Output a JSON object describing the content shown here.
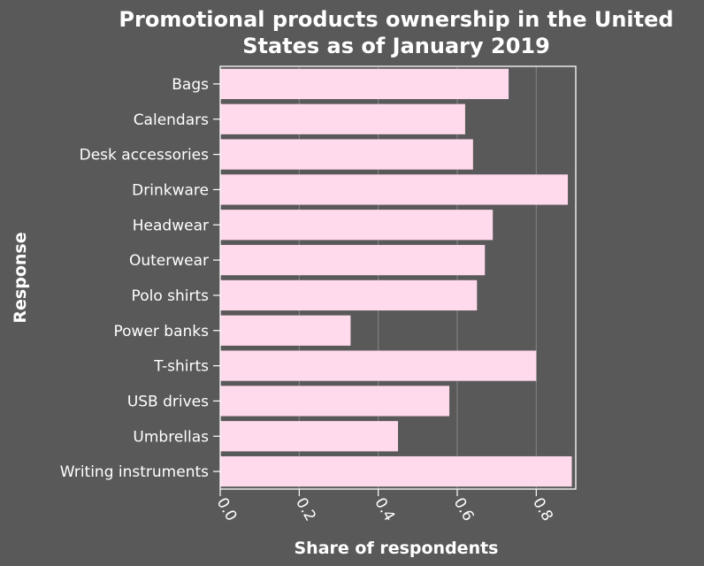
{
  "colors": {
    "background": "#595959",
    "bar": "#ffd9ec",
    "grid": "#7f7f7f",
    "text": "#ffffff",
    "axis": "#ffffff"
  },
  "chart_data": {
    "type": "bar",
    "orientation": "horizontal",
    "title_lines": [
      "Promotional products ownership in the United",
      "States as of January 2019"
    ],
    "xlabel": "Share of respondents",
    "ylabel": "Response",
    "categories": [
      "Bags",
      "Calendars",
      "Desk accessories",
      "Drinkware",
      "Headwear",
      "Outerwear",
      "Polo shirts",
      "Power banks",
      "T-shirts",
      "USB drives",
      "Umbrellas",
      "Writing instruments"
    ],
    "values": [
      0.73,
      0.62,
      0.64,
      0.88,
      0.69,
      0.67,
      0.65,
      0.33,
      0.8,
      0.58,
      0.45,
      0.89
    ],
    "xlim": [
      0,
      0.9
    ],
    "xticks": [
      0.0,
      0.2,
      0.4,
      0.6,
      0.8
    ],
    "xtick_labels": [
      "0.0",
      "0.2",
      "0.4",
      "0.6",
      "0.8"
    ],
    "grid": "vertical",
    "legend": "none"
  }
}
